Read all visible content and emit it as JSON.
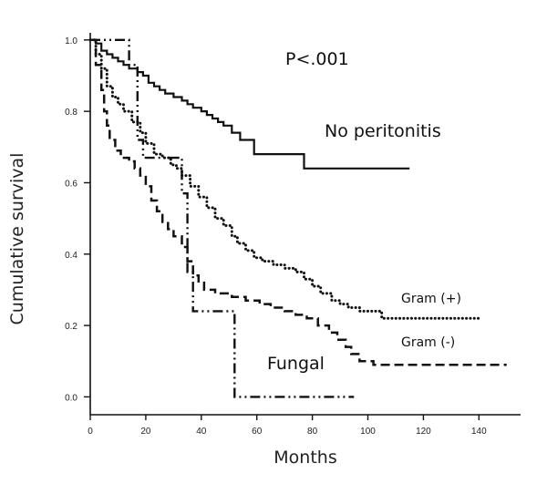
{
  "chart_data": {
    "type": "line",
    "subtype": "kaplan-meier step curves",
    "xlabel": "Months",
    "ylabel": "Cumulative survival",
    "xlim": [
      0,
      155
    ],
    "ylim": [
      -0.05,
      1.02
    ],
    "xticks": [
      0,
      20,
      40,
      60,
      80,
      100,
      120,
      140
    ],
    "yticks": [
      0.0,
      0.2,
      0.4,
      0.6,
      0.8,
      1.0
    ],
    "ytick_labels": [
      "0.0",
      "0.2",
      "0.4",
      "0.6",
      "0.8",
      "1.0"
    ],
    "grid": false,
    "annotation": "P<.001",
    "series": [
      {
        "name": "No peritonitis",
        "style": "solid",
        "points": [
          [
            0,
            1.0
          ],
          [
            2,
            0.99
          ],
          [
            4,
            0.97
          ],
          [
            6,
            0.96
          ],
          [
            8,
            0.95
          ],
          [
            10,
            0.94
          ],
          [
            12,
            0.93
          ],
          [
            14,
            0.92
          ],
          [
            17,
            0.91
          ],
          [
            19,
            0.9
          ],
          [
            21,
            0.88
          ],
          [
            23,
            0.87
          ],
          [
            25,
            0.86
          ],
          [
            27,
            0.85
          ],
          [
            30,
            0.84
          ],
          [
            33,
            0.83
          ],
          [
            35,
            0.82
          ],
          [
            37,
            0.81
          ],
          [
            40,
            0.8
          ],
          [
            42,
            0.79
          ],
          [
            44,
            0.78
          ],
          [
            46,
            0.77
          ],
          [
            48,
            0.76
          ],
          [
            51,
            0.74
          ],
          [
            54,
            0.72
          ],
          [
            59,
            0.68
          ],
          [
            77,
            0.64
          ],
          [
            115,
            0.64
          ]
        ]
      },
      {
        "name": "Gram (+)",
        "style": "dotted",
        "points": [
          [
            0,
            1.0
          ],
          [
            2,
            0.96
          ],
          [
            4,
            0.92
          ],
          [
            6,
            0.87
          ],
          [
            8,
            0.84
          ],
          [
            10,
            0.82
          ],
          [
            12,
            0.8
          ],
          [
            15,
            0.77
          ],
          [
            18,
            0.74
          ],
          [
            20,
            0.71
          ],
          [
            23,
            0.68
          ],
          [
            26,
            0.67
          ],
          [
            29,
            0.65
          ],
          [
            31,
            0.64
          ],
          [
            33,
            0.62
          ],
          [
            36,
            0.59
          ],
          [
            39,
            0.56
          ],
          [
            42,
            0.53
          ],
          [
            45,
            0.5
          ],
          [
            48,
            0.48
          ],
          [
            51,
            0.45
          ],
          [
            53,
            0.43
          ],
          [
            56,
            0.41
          ],
          [
            59,
            0.39
          ],
          [
            62,
            0.38
          ],
          [
            66,
            0.37
          ],
          [
            70,
            0.36
          ],
          [
            74,
            0.35
          ],
          [
            77,
            0.33
          ],
          [
            80,
            0.31
          ],
          [
            83,
            0.29
          ],
          [
            87,
            0.27
          ],
          [
            90,
            0.26
          ],
          [
            93,
            0.25
          ],
          [
            97,
            0.24
          ],
          [
            105,
            0.22
          ],
          [
            141,
            0.22
          ]
        ]
      },
      {
        "name": "Gram (-)",
        "style": "dashed",
        "points": [
          [
            0,
            1.0
          ],
          [
            2,
            0.93
          ],
          [
            4,
            0.86
          ],
          [
            5,
            0.8
          ],
          [
            6,
            0.76
          ],
          [
            7,
            0.72
          ],
          [
            9,
            0.69
          ],
          [
            11,
            0.67
          ],
          [
            14,
            0.66
          ],
          [
            16,
            0.64
          ],
          [
            18,
            0.62
          ],
          [
            20,
            0.59
          ],
          [
            22,
            0.55
          ],
          [
            24,
            0.52
          ],
          [
            26,
            0.49
          ],
          [
            28,
            0.47
          ],
          [
            30,
            0.45
          ],
          [
            33,
            0.42
          ],
          [
            35,
            0.38
          ],
          [
            37,
            0.34
          ],
          [
            39,
            0.32
          ],
          [
            41,
            0.3
          ],
          [
            45,
            0.29
          ],
          [
            51,
            0.28
          ],
          [
            56,
            0.27
          ],
          [
            61,
            0.26
          ],
          [
            65,
            0.25
          ],
          [
            70,
            0.24
          ],
          [
            74,
            0.23
          ],
          [
            78,
            0.22
          ],
          [
            82,
            0.2
          ],
          [
            86,
            0.18
          ],
          [
            89,
            0.16
          ],
          [
            92,
            0.14
          ],
          [
            94,
            0.12
          ],
          [
            97,
            0.1
          ],
          [
            102,
            0.09
          ],
          [
            150,
            0.09
          ]
        ]
      },
      {
        "name": "Fungal",
        "style": "dash-dot",
        "points": [
          [
            0,
            1.0
          ],
          [
            13,
            1.0
          ],
          [
            14,
            0.93
          ],
          [
            17,
            0.72
          ],
          [
            19,
            0.67
          ],
          [
            31,
            0.67
          ],
          [
            33,
            0.57
          ],
          [
            35,
            0.35
          ],
          [
            37,
            0.24
          ],
          [
            52,
            0.24
          ],
          [
            52,
            0.0
          ],
          [
            95,
            0.0
          ]
        ]
      }
    ]
  }
}
